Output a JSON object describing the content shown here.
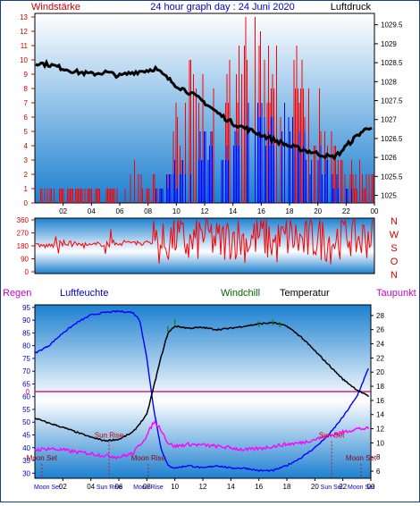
{
  "header": {
    "left_label": "Windstärke",
    "title": "24 hour graph day : 24 Juni 2020",
    "right_label": "Luftdruck"
  },
  "wind_dir_labels": [
    "N",
    "W",
    "S",
    "O",
    "N"
  ],
  "lower_header": {
    "rain_label": "Regen",
    "humidity_label": "Luftfeuchte",
    "windchill_label": "Windchill",
    "temperature_label": "Temperatur",
    "dewpoint_label": "Taupunkt"
  },
  "colors": {
    "sky_top": "#1c80d0",
    "sky_bottom": "#ffffff",
    "wind_gust": "#ff0000",
    "wind_avg": "#0000ff",
    "pressure": "#000000",
    "temperature": "#000000",
    "humidity": "#0000ff",
    "dewpoint": "#ff00ff",
    "windchill": "#008000",
    "rain_zero_line": "#cc0066",
    "label_red": "#cc0000",
    "label_blue": "#0000cc",
    "label_magenta": "#cc00cc",
    "label_green": "#006600"
  },
  "chart_data": [
    {
      "type": "line",
      "title": "24 hour graph day : 24 Juni 2020",
      "x_tick_labels": [
        "02",
        "04",
        "06",
        "08",
        "10",
        "12",
        "14",
        "16",
        "18",
        "20",
        "22",
        "00"
      ],
      "y_left_label": "Windstärke",
      "y_left_ticks": [
        "0",
        "1",
        "2",
        "3",
        "4",
        "5",
        "6",
        "7",
        "8",
        "9",
        "10",
        "11",
        "12",
        "13"
      ],
      "y_left_range": [
        0,
        13
      ],
      "y_right_label": "Luftdruck",
      "y_right_ticks": [
        "1029.5",
        "1029",
        "1028.5",
        "1028",
        "1027.5",
        "1027",
        "1026.5",
        "1026",
        "1025.5",
        "1025"
      ],
      "y_right_range": [
        1024.8,
        1029.8
      ],
      "series": [
        {
          "name": "Luftdruck",
          "axis": "right",
          "points": [
            [
              0,
              1028.5
            ],
            [
              1,
              1028.45
            ],
            [
              2,
              1028.35
            ],
            [
              3,
              1028.25
            ],
            [
              4,
              1028.2
            ],
            [
              5,
              1028.25
            ],
            [
              6,
              1028.15
            ],
            [
              7,
              1028.25
            ],
            [
              8,
              1028.3
            ],
            [
              8.5,
              1028.35
            ],
            [
              9,
              1028.2
            ],
            [
              10,
              1027.9
            ],
            [
              11,
              1027.7
            ],
            [
              12,
              1027.45
            ],
            [
              13,
              1027.15
            ],
            [
              14,
              1026.9
            ],
            [
              15,
              1026.75
            ],
            [
              16,
              1026.6
            ],
            [
              17,
              1026.45
            ],
            [
              18,
              1026.3
            ],
            [
              19,
              1026.2
            ],
            [
              20,
              1026.1
            ],
            [
              21,
              1026.0
            ],
            [
              21.5,
              1026.1
            ],
            [
              22,
              1026.3
            ],
            [
              23,
              1026.65
            ],
            [
              23.9,
              1026.85
            ]
          ]
        },
        {
          "name": "gust_levels",
          "axis": "left",
          "points": [
            [
              0,
              0
            ],
            [
              1,
              1
            ],
            [
              2,
              1
            ],
            [
              4,
              1
            ],
            [
              6,
              1
            ],
            [
              7,
              2
            ],
            [
              8,
              1
            ],
            [
              8.5,
              2
            ],
            [
              9,
              1
            ],
            [
              10,
              5
            ],
            [
              11,
              7
            ],
            [
              12,
              7
            ],
            [
              13,
              8
            ],
            [
              14,
              9
            ],
            [
              15,
              12
            ],
            [
              16,
              10
            ],
            [
              17,
              9
            ],
            [
              18,
              10
            ],
            [
              19,
              7
            ],
            [
              20,
              6
            ],
            [
              21,
              4
            ],
            [
              22,
              2
            ],
            [
              23,
              2
            ],
            [
              23.9,
              2
            ]
          ]
        },
        {
          "name": "avg_levels",
          "axis": "left",
          "points": [
            [
              0,
              0
            ],
            [
              8,
              0
            ],
            [
              9,
              1
            ],
            [
              10,
              2
            ],
            [
              11,
              3
            ],
            [
              12,
              4
            ],
            [
              13,
              4
            ],
            [
              14,
              5
            ],
            [
              15,
              6
            ],
            [
              16,
              6
            ],
            [
              17,
              5
            ],
            [
              18,
              5
            ],
            [
              19,
              4
            ],
            [
              20,
              3
            ],
            [
              21,
              2
            ],
            [
              22,
              1
            ],
            [
              23,
              0
            ],
            [
              23.9,
              0
            ]
          ]
        }
      ]
    },
    {
      "type": "scatter",
      "title": "",
      "y_ticks": [
        "360",
        "270",
        "180",
        "90",
        "0"
      ],
      "y_range": [
        0,
        360
      ],
      "direction_labels": [
        "N",
        "W",
        "S",
        "O",
        "N"
      ],
      "points": [
        [
          0.2,
          180
        ],
        [
          1,
          180
        ],
        [
          2,
          200
        ],
        [
          3,
          190
        ],
        [
          4,
          180
        ],
        [
          5,
          200
        ],
        [
          6,
          200
        ],
        [
          7,
          210
        ],
        [
          7.5,
          190
        ],
        [
          8,
          200
        ],
        [
          8.5,
          230
        ],
        [
          9,
          180
        ],
        [
          10,
          250
        ],
        [
          11,
          180
        ],
        [
          12,
          270
        ],
        [
          13,
          200
        ],
        [
          14,
          250
        ],
        [
          15,
          210
        ],
        [
          16,
          260
        ],
        [
          17,
          190
        ],
        [
          18,
          250
        ],
        [
          19,
          200
        ],
        [
          20,
          240
        ],
        [
          21,
          210
        ],
        [
          22,
          270
        ],
        [
          23,
          220
        ],
        [
          23.9,
          270
        ]
      ]
    },
    {
      "type": "line",
      "title": "",
      "x_tick_labels": [
        "02",
        "04",
        "06",
        "08",
        "10",
        "12",
        "14",
        "16",
        "18",
        "20",
        "22",
        "00"
      ],
      "y_left_ticks": [
        "95",
        "90",
        "85",
        "80",
        "75",
        "70",
        "65",
        "60",
        "55",
        "50",
        "45",
        "40",
        "35",
        "30"
      ],
      "y_left_range": [
        28,
        96
      ],
      "y_right_ticks": [
        "28",
        "26",
        "24",
        "22",
        "20",
        "18",
        "16",
        "14",
        "12",
        "10",
        "8",
        "6"
      ],
      "y_right_range": [
        5,
        29.5
      ],
      "rain_value": "0",
      "series": [
        {
          "name": "Luftfeuchte",
          "axis": "left",
          "points": [
            [
              0,
              77
            ],
            [
              1,
              80
            ],
            [
              2,
              85
            ],
            [
              3,
              89
            ],
            [
              4,
              92
            ],
            [
              5,
              93
            ],
            [
              6,
              93.5
            ],
            [
              7,
              93
            ],
            [
              7.5,
              90
            ],
            [
              8,
              75
            ],
            [
              8.5,
              55
            ],
            [
              9,
              40
            ],
            [
              9.5,
              33
            ],
            [
              10,
              32
            ],
            [
              11,
              33
            ],
            [
              12,
              32
            ],
            [
              13,
              33
            ],
            [
              14,
              32
            ],
            [
              15,
              32
            ],
            [
              16,
              31
            ],
            [
              17,
              31
            ],
            [
              18,
              33
            ],
            [
              19,
              36
            ],
            [
              20,
              40
            ],
            [
              21,
              45
            ],
            [
              22,
              52
            ],
            [
              23,
              60
            ],
            [
              23.9,
              72
            ]
          ]
        },
        {
          "name": "Temperatur",
          "axis": "right",
          "points": [
            [
              0,
              13.5
            ],
            [
              1,
              12.8
            ],
            [
              2,
              12.2
            ],
            [
              3,
              11.5
            ],
            [
              4,
              10.8
            ],
            [
              5,
              10.3
            ],
            [
              6,
              10.5
            ],
            [
              7,
              11.5
            ],
            [
              8,
              14
            ],
            [
              8.5,
              18
            ],
            [
              9,
              22
            ],
            [
              9.5,
              25.5
            ],
            [
              10,
              26.5
            ],
            [
              11,
              26.2
            ],
            [
              12,
              26.3
            ],
            [
              13,
              26
            ],
            [
              14,
              26.2
            ],
            [
              15,
              26.5
            ],
            [
              16,
              26.8
            ],
            [
              17,
              27
            ],
            [
              18,
              26.5
            ],
            [
              19,
              25
            ],
            [
              20,
              23
            ],
            [
              21,
              21
            ],
            [
              22,
              19
            ],
            [
              23,
              17.5
            ],
            [
              23.9,
              16.5
            ]
          ]
        },
        {
          "name": "Taupunkt",
          "axis": "right",
          "points": [
            [
              0,
              9
            ],
            [
              1,
              9.2
            ],
            [
              2,
              9
            ],
            [
              3,
              8.7
            ],
            [
              4,
              8.5
            ],
            [
              5,
              8.2
            ],
            [
              6,
              8
            ],
            [
              7,
              8.5
            ],
            [
              8,
              11
            ],
            [
              8.5,
              13
            ],
            [
              9,
              12
            ],
            [
              9.5,
              10
            ],
            [
              10,
              9.5
            ],
            [
              11,
              9.8
            ],
            [
              12,
              9.7
            ],
            [
              13,
              9.5
            ],
            [
              14,
              9.3
            ],
            [
              15,
              9
            ],
            [
              16,
              9.2
            ],
            [
              17,
              9.5
            ],
            [
              18,
              9.8
            ],
            [
              19,
              10
            ],
            [
              20,
              10.5
            ],
            [
              21,
              11
            ],
            [
              22,
              11.5
            ],
            [
              23,
              12
            ],
            [
              23.9,
              12
            ]
          ]
        },
        {
          "name": "Windchill",
          "axis": "right",
          "points": [
            [
              9.5,
              26.5
            ],
            [
              10,
              27.5
            ],
            [
              16,
              27.2
            ],
            [
              17,
              27.4
            ],
            [
              17.5,
              27.1
            ]
          ]
        }
      ],
      "annotations": [
        {
          "text": "Moon Set",
          "x": 0.5,
          "y": 35
        },
        {
          "text": "Sun Rise",
          "x": 5.3,
          "y": 44
        },
        {
          "text": "Moon Rise",
          "x": 8.1,
          "y": 35
        },
        {
          "text": "Sun Set",
          "x": 21.2,
          "y": 44
        },
        {
          "text": "Moon Set",
          "x": 23.3,
          "y": 35
        }
      ],
      "bottom_labels": [
        "Moon Set",
        "Sun Rise",
        "Moon Rise",
        "Sun Set",
        "Moon Set"
      ]
    }
  ]
}
